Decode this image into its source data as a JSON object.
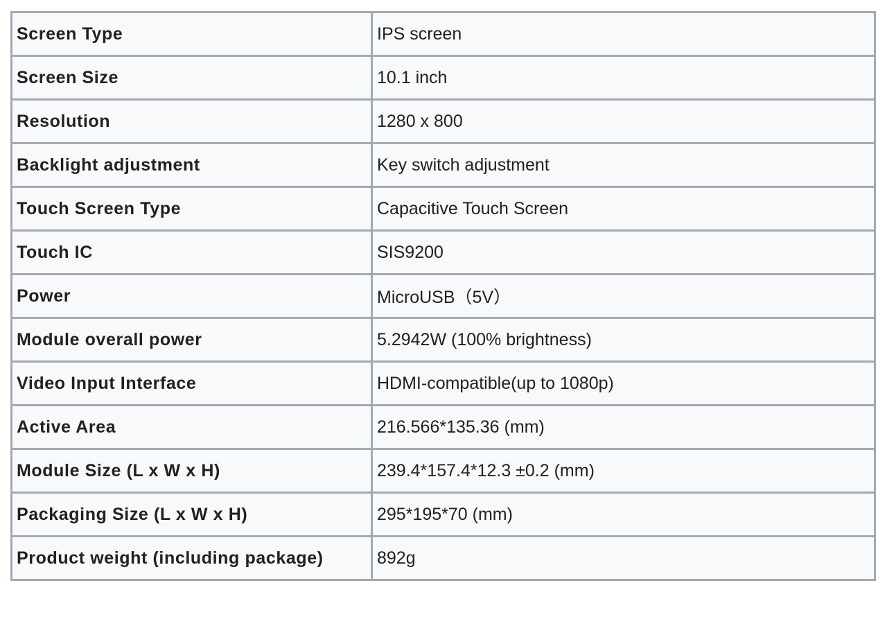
{
  "specs": [
    {
      "label": "Screen Type",
      "value": "IPS screen"
    },
    {
      "label": "Screen Size",
      "value": "10.1 inch"
    },
    {
      "label": "Resolution",
      "value": "1280 x 800"
    },
    {
      "label": "Backlight adjustment",
      "value": "Key switch adjustment"
    },
    {
      "label": "Touch Screen Type",
      "value": "Capacitive Touch Screen"
    },
    {
      "label": "Touch IC",
      "value": "SIS9200"
    },
    {
      "label": "Power",
      "value": "MicroUSB（5V）"
    },
    {
      "label": "Module overall power",
      "value": "5.2942W (100% brightness)"
    },
    {
      "label": "Video Input Interface",
      "value": "HDMI-compatible(up to 1080p)"
    },
    {
      "label": "Active Area",
      "value": "216.566*135.36 (mm)"
    },
    {
      "label": "Module Size (L x W x H)",
      "value": "239.4*157.4*12.3 ±0.2 (mm)"
    },
    {
      "label": "Packaging Size (L x W x H)",
      "value": "295*195*70 (mm)"
    },
    {
      "label": "Product weight (including package)",
      "value": "892g"
    }
  ]
}
